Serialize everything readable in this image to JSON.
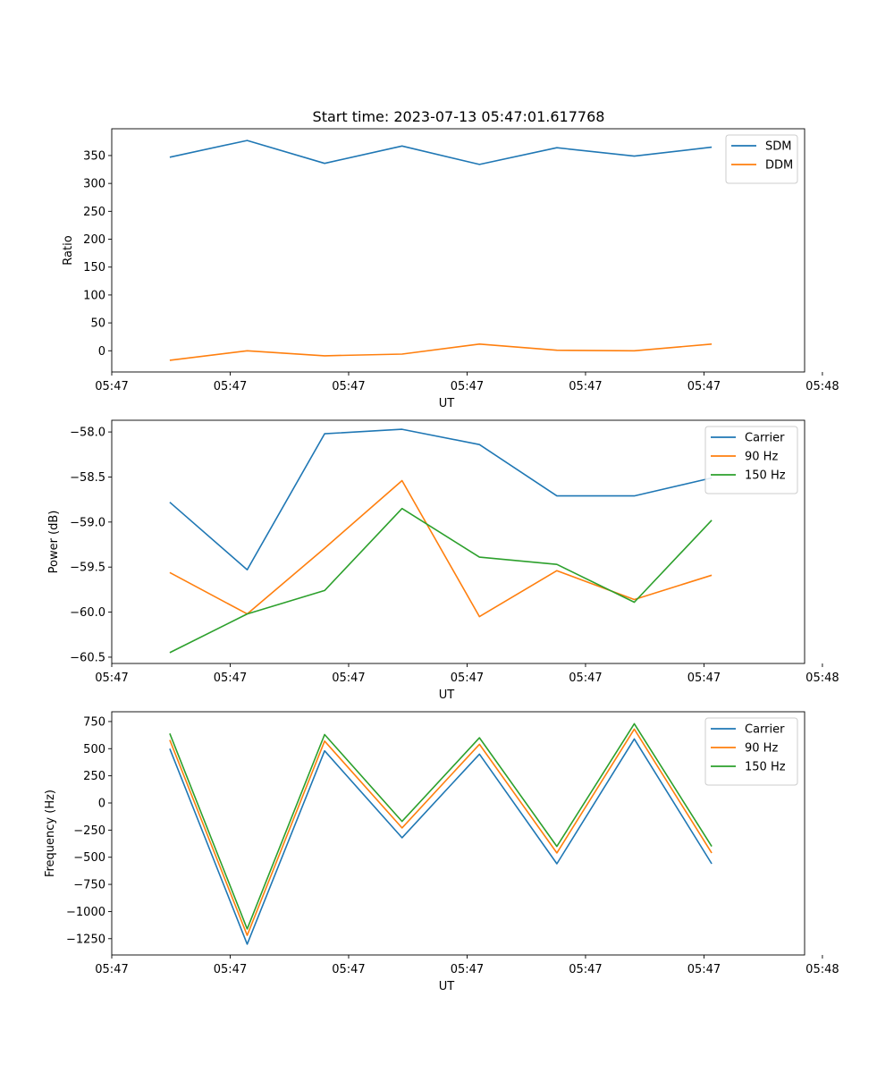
{
  "figure": {
    "title": "Start time: 2023-07-13 05:47:01.617768"
  },
  "colors": {
    "blue": "#1f77b4",
    "orange": "#ff7f0e",
    "green": "#2ca02c"
  },
  "chart_data": [
    {
      "type": "line",
      "title": "Start time: 2023-07-13 05:47:01.617768",
      "xlabel": "UT",
      "ylabel": "Ratio",
      "x": [
        1,
        2,
        3,
        4,
        5,
        6,
        7,
        8
      ],
      "xlim": [
        0.25,
        9.2
      ],
      "xticks": [
        0.25,
        1.78,
        3.31,
        4.84,
        6.37,
        7.9,
        9.43
      ],
      "xtick_labels": [
        "05:47",
        "05:47",
        "05:47",
        "05:47",
        "05:47",
        "05:47",
        "05:48"
      ],
      "ylim": [
        -38,
        398
      ],
      "yticks": [
        0,
        50,
        100,
        150,
        200,
        250,
        300,
        350
      ],
      "ytick_labels": [
        "0",
        "50",
        "100",
        "150",
        "200",
        "250",
        "300",
        "350"
      ],
      "legend_position": "top-right",
      "series": [
        {
          "name": "SDM",
          "color": "#1f77b4",
          "values": [
            347,
            377,
            336,
            367,
            334,
            364,
            349,
            365
          ]
        },
        {
          "name": "DDM",
          "color": "#ff7f0e",
          "values": [
            -17,
            0,
            -9,
            -6,
            12,
            1,
            0,
            12
          ]
        }
      ]
    },
    {
      "type": "line",
      "title": "",
      "xlabel": "UT",
      "ylabel": "Power (dB)",
      "x": [
        1,
        2,
        3,
        4,
        5,
        6,
        7,
        8
      ],
      "xlim": [
        0.25,
        9.2
      ],
      "xticks": [
        0.25,
        1.78,
        3.31,
        4.84,
        6.37,
        7.9,
        9.43
      ],
      "xtick_labels": [
        "05:47",
        "05:47",
        "05:47",
        "05:47",
        "05:47",
        "05:47",
        "05:48"
      ],
      "ylim": [
        -60.57,
        -57.87
      ],
      "yticks": [
        -60.5,
        -60.0,
        -59.5,
        -59.0,
        -58.5,
        -58.0
      ],
      "ytick_labels": [
        "−60.5",
        "−60.0",
        "−59.5",
        "−59.0",
        "−58.5",
        "−58.0"
      ],
      "legend_position": "top-right",
      "series": [
        {
          "name": "Carrier",
          "color": "#1f77b4",
          "values": [
            -58.78,
            -59.53,
            -58.02,
            -57.97,
            -58.14,
            -58.71,
            -58.71,
            -58.51
          ]
        },
        {
          "name": "90 Hz",
          "color": "#ff7f0e",
          "values": [
            -59.56,
            -60.02,
            -59.29,
            -58.54,
            -60.05,
            -59.54,
            -59.86,
            -59.59
          ]
        },
        {
          "name": "150 Hz",
          "color": "#2ca02c",
          "values": [
            -60.45,
            -60.02,
            -59.76,
            -58.85,
            -59.39,
            -59.47,
            -59.89,
            -58.98
          ]
        }
      ]
    },
    {
      "type": "line",
      "title": "",
      "xlabel": "UT",
      "ylabel": "Frequency (Hz)",
      "x": [
        1,
        2,
        3,
        4,
        5,
        6,
        7,
        8
      ],
      "xlim": [
        0.25,
        9.2
      ],
      "xticks": [
        0.25,
        1.78,
        3.31,
        4.84,
        6.37,
        7.9,
        9.43
      ],
      "xtick_labels": [
        "05:47",
        "05:47",
        "05:47",
        "05:47",
        "05:47",
        "05:47",
        "05:48"
      ],
      "ylim": [
        -1400,
        840
      ],
      "yticks": [
        -1250,
        -1000,
        -750,
        -500,
        -250,
        0,
        250,
        500,
        750
      ],
      "ytick_labels": [
        "−1250",
        "−1000",
        "−750",
        "−500",
        "−250",
        "0",
        "250",
        "500",
        "750"
      ],
      "legend_position": "top-right",
      "series": [
        {
          "name": "Carrier",
          "color": "#1f77b4",
          "values": [
            500,
            -1300,
            480,
            -320,
            450,
            -560,
            590,
            -560
          ]
        },
        {
          "name": "90 Hz",
          "color": "#ff7f0e",
          "values": [
            580,
            -1220,
            570,
            -230,
            540,
            -460,
            680,
            -460
          ]
        },
        {
          "name": "150 Hz",
          "color": "#2ca02c",
          "values": [
            640,
            -1160,
            630,
            -170,
            600,
            -400,
            730,
            -400
          ]
        }
      ]
    }
  ]
}
